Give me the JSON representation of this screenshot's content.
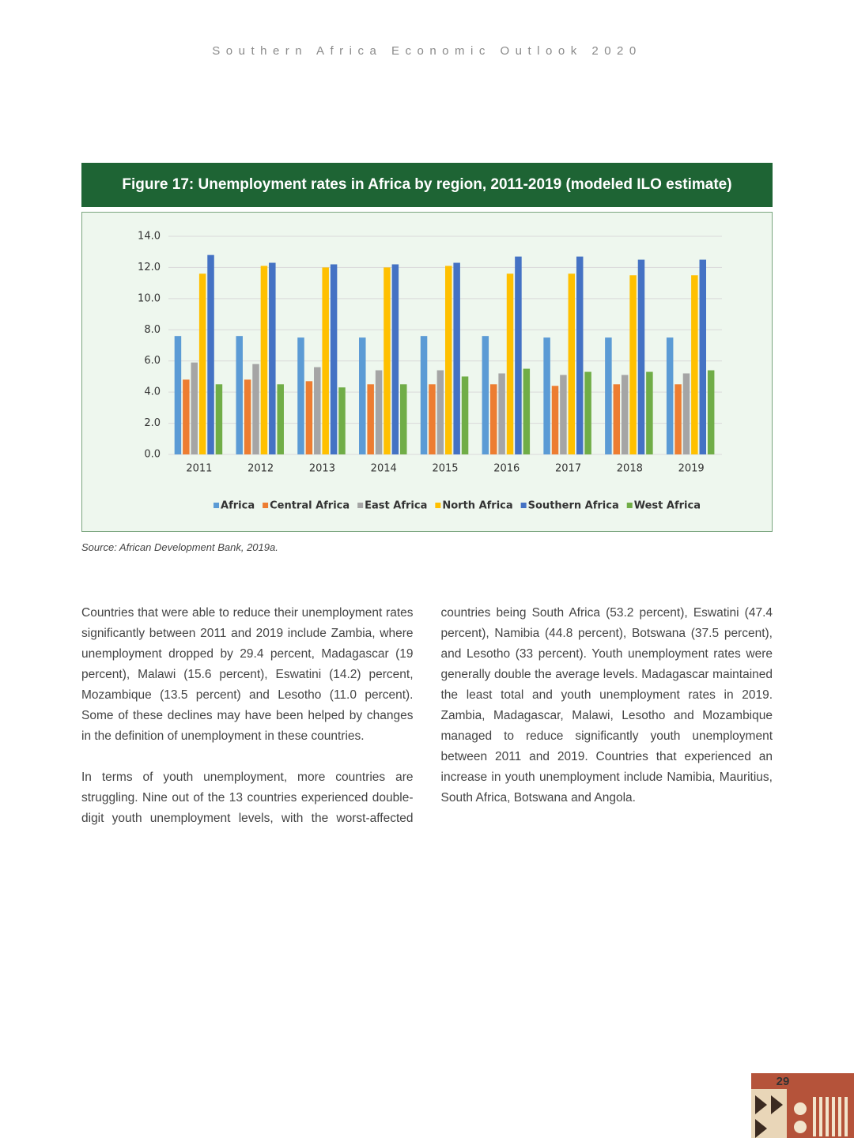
{
  "header": "Southern Africa Economic Outlook 2020",
  "figure_title": "Figure 17: Unemployment rates in Africa by region, 2011-2019 (modeled ILO estimate)",
  "chart_data": {
    "type": "bar",
    "categories": [
      "2011",
      "2012",
      "2013",
      "2014",
      "2015",
      "2016",
      "2017",
      "2018",
      "2019"
    ],
    "series": [
      {
        "name": "Africa",
        "color": "#5b9bd5",
        "values": [
          7.6,
          7.6,
          7.5,
          7.5,
          7.6,
          7.6,
          7.5,
          7.5,
          7.5
        ]
      },
      {
        "name": "Central Africa",
        "color": "#ed7d31",
        "values": [
          4.8,
          4.8,
          4.7,
          4.5,
          4.5,
          4.5,
          4.4,
          4.5,
          4.5
        ]
      },
      {
        "name": "East Africa",
        "color": "#a5a5a5",
        "values": [
          5.9,
          5.8,
          5.6,
          5.4,
          5.4,
          5.2,
          5.1,
          5.1,
          5.2
        ]
      },
      {
        "name": "North Africa",
        "color": "#ffc000",
        "values": [
          11.6,
          12.1,
          12.0,
          12.0,
          12.1,
          11.6,
          11.6,
          11.5,
          11.5
        ]
      },
      {
        "name": "Southern Africa",
        "color": "#4472c4",
        "values": [
          12.8,
          12.3,
          12.2,
          12.2,
          12.3,
          12.7,
          12.7,
          12.5,
          12.5
        ]
      },
      {
        "name": "West Africa",
        "color": "#70ad47",
        "values": [
          4.5,
          4.5,
          4.3,
          4.5,
          5.0,
          5.5,
          5.3,
          5.3,
          5.4
        ]
      }
    ],
    "ylim": [
      0,
      14
    ],
    "yticks": [
      {
        "value": 0,
        "label": "0.0"
      },
      {
        "value": 2,
        "label": "2.0"
      },
      {
        "value": 4,
        "label": "4.0"
      },
      {
        "value": 6,
        "label": "6.0"
      },
      {
        "value": 8,
        "label": "8.0"
      },
      {
        "value": 10,
        "label": "10.0"
      },
      {
        "value": 12,
        "label": "12.0"
      },
      {
        "value": 14,
        "label": "14.0"
      }
    ],
    "grid": true,
    "legend": "bottom"
  },
  "source": "Source: African Development Bank, 2019a.",
  "paragraphs": [
    "Countries that were able to reduce their unemployment rates significantly between 2011 and 2019 include Zambia, where unemployment dropped by 29.4 percent, Madagascar (19 percent), Malawi (15.6 percent), Eswatini (14.2) percent, Mozambique (13.5 percent) and Lesotho (11.0 percent). Some of these declines may have been helped by changes in the definition of unemployment in these countries.",
    "In terms of youth unemployment, more countries are struggling. Nine out of the 13 countries experienced double-digit youth unemployment levels, with the worst-affected countries being South Africa (53.2 percent), Eswatini (47.4 percent), Namibia (44.8 percent), Botswana (37.5 percent), and Lesotho (33 percent). Youth unemployment rates were generally double the average levels. Madagascar maintained the least total and youth unemployment rates in 2019. Zambia, Madagascar, Malawi, Lesotho and Mozambique managed to reduce significantly youth unemployment between 2011 and 2019. Countries that experienced an increase in youth unemployment include Namibia, Mauritius, South Africa, Botswana and Angola."
  ],
  "page_number": "29"
}
